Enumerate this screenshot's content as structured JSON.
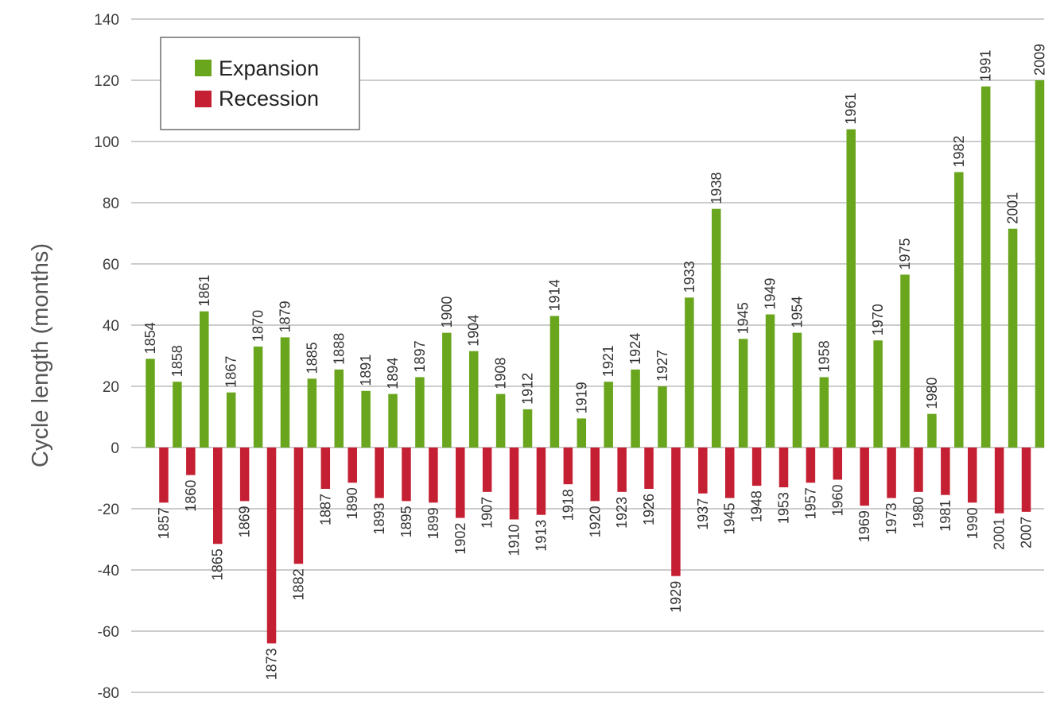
{
  "chart_data": {
    "type": "bar",
    "ylabel": "Cycle length (months)",
    "ylim": [
      -80,
      140
    ],
    "yticks": [
      140,
      120,
      100,
      80,
      60,
      40,
      20,
      0,
      -20,
      -40,
      -60,
      -80
    ],
    "grid": true,
    "legend_position": "top-left",
    "series": [
      {
        "name": "Expansion",
        "color": "#6aa51e",
        "points": [
          {
            "label": "1854",
            "value": 29
          },
          {
            "label": "1858",
            "value": 21.5
          },
          {
            "label": "1861",
            "value": 44.5
          },
          {
            "label": "1867",
            "value": 18
          },
          {
            "label": "1870",
            "value": 33
          },
          {
            "label": "1879",
            "value": 36
          },
          {
            "label": "1885",
            "value": 22.5
          },
          {
            "label": "1888",
            "value": 25.5
          },
          {
            "label": "1891",
            "value": 18.5
          },
          {
            "label": "1894",
            "value": 17.5
          },
          {
            "label": "1897",
            "value": 23
          },
          {
            "label": "1900",
            "value": 37.5
          },
          {
            "label": "1904",
            "value": 31.5
          },
          {
            "label": "1908",
            "value": 17.5
          },
          {
            "label": "1912",
            "value": 12.5
          },
          {
            "label": "1914",
            "value": 43
          },
          {
            "label": "1919",
            "value": 9.5
          },
          {
            "label": "1921",
            "value": 21.5
          },
          {
            "label": "1924",
            "value": 25.5
          },
          {
            "label": "1927",
            "value": 20
          },
          {
            "label": "1933",
            "value": 49
          },
          {
            "label": "1938",
            "value": 78
          },
          {
            "label": "1945",
            "value": 35.5
          },
          {
            "label": "1949",
            "value": 43.5
          },
          {
            "label": "1954",
            "value": 37.5
          },
          {
            "label": "1958",
            "value": 23
          },
          {
            "label": "1961",
            "value": 104
          },
          {
            "label": "1970",
            "value": 35
          },
          {
            "label": "1975",
            "value": 56.5
          },
          {
            "label": "1980",
            "value": 11
          },
          {
            "label": "1982",
            "value": 90
          },
          {
            "label": "1991",
            "value": 118
          },
          {
            "label": "2001",
            "value": 71.5
          },
          {
            "label": "2009",
            "value": 120
          }
        ]
      },
      {
        "name": "Recession",
        "color": "#c41f32",
        "points": [
          {
            "label": "1857",
            "value": -18
          },
          {
            "label": "1860",
            "value": -9
          },
          {
            "label": "1865",
            "value": -31.5
          },
          {
            "label": "1869",
            "value": -17.5
          },
          {
            "label": "1873",
            "value": -64
          },
          {
            "label": "1882",
            "value": -38
          },
          {
            "label": "1887",
            "value": -13.5
          },
          {
            "label": "1890",
            "value": -11.5
          },
          {
            "label": "1893",
            "value": -16.5
          },
          {
            "label": "1895",
            "value": -17.5
          },
          {
            "label": "1899",
            "value": -18
          },
          {
            "label": "1902",
            "value": -23
          },
          {
            "label": "1907",
            "value": -14.5
          },
          {
            "label": "1910",
            "value": -23.5
          },
          {
            "label": "1913",
            "value": -22
          },
          {
            "label": "1918",
            "value": -12
          },
          {
            "label": "1920",
            "value": -17.5
          },
          {
            "label": "1923",
            "value": -14.5
          },
          {
            "label": "1926",
            "value": -13.5
          },
          {
            "label": "1929",
            "value": -42
          },
          {
            "label": "1937",
            "value": -15
          },
          {
            "label": "1945",
            "value": -16.5
          },
          {
            "label": "1948",
            "value": -12.5
          },
          {
            "label": "1953",
            "value": -13
          },
          {
            "label": "1957",
            "value": -11.5
          },
          {
            "label": "1960",
            "value": -10.5
          },
          {
            "label": "1969",
            "value": -19
          },
          {
            "label": "1973",
            "value": -16.5
          },
          {
            "label": "1980",
            "value": -14.5
          },
          {
            "label": "1981",
            "value": -15.5
          },
          {
            "label": "1990",
            "value": -18
          },
          {
            "label": "2001",
            "value": -21.5
          },
          {
            "label": "2007",
            "value": -21
          }
        ]
      }
    ]
  }
}
